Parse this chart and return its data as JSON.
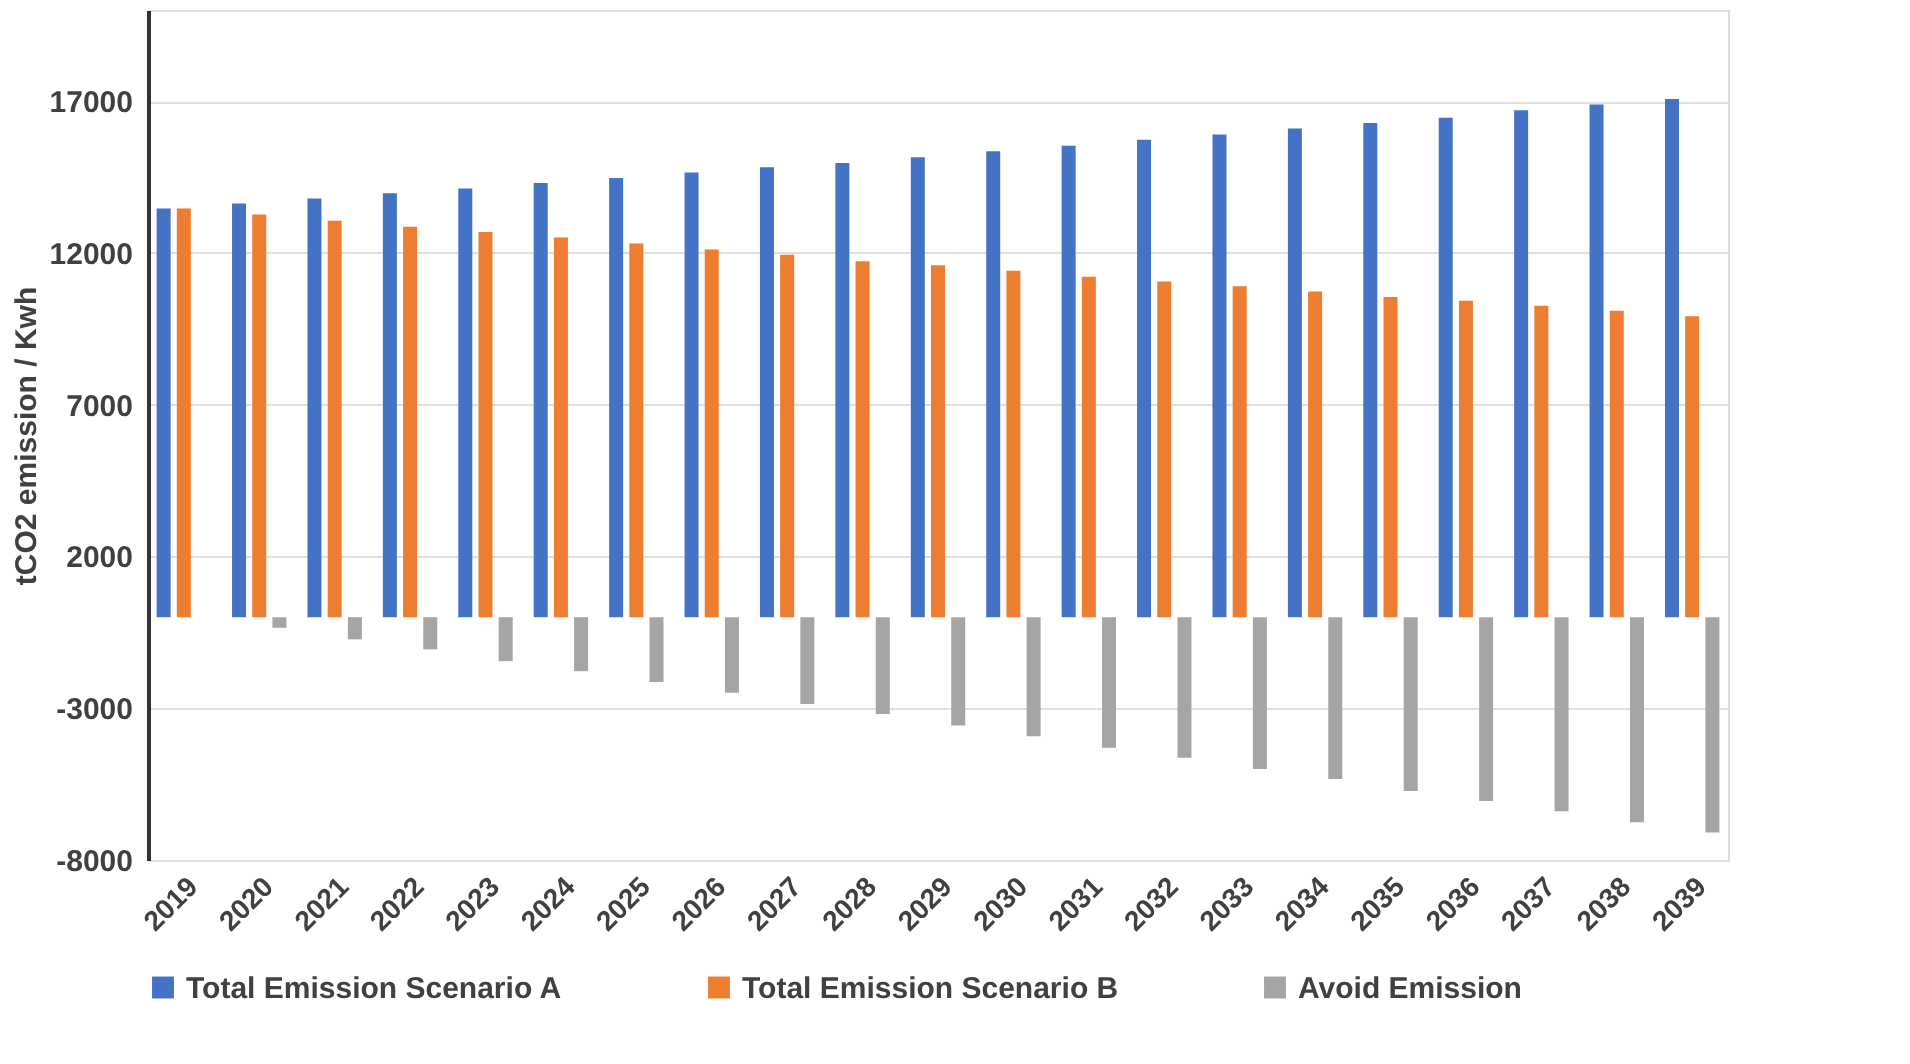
{
  "chart_data": {
    "type": "bar",
    "ylabel": "tCO2 emission / Kwh",
    "categories": [
      "2019",
      "2020",
      "2021",
      "2022",
      "2023",
      "2024",
      "2025",
      "2026",
      "2027",
      "2028",
      "2029",
      "2030",
      "2031",
      "2032",
      "2033",
      "2034",
      "2035",
      "2036",
      "2037",
      "2038",
      "2039"
    ],
    "series": [
      {
        "name": "Total Emission Scenario A",
        "color": "#4472c4",
        "values": [
          13460,
          13630,
          13790,
          13960,
          14120,
          14300,
          14470,
          14650,
          14820,
          14960,
          15150,
          15350,
          15530,
          15730,
          15900,
          16100,
          16280,
          16450,
          16700,
          16890,
          17070
        ]
      },
      {
        "name": "Total Emission Scenario B",
        "color": "#ed7d31",
        "values": [
          13460,
          13260,
          13060,
          12860,
          12690,
          12510,
          12310,
          12110,
          11940,
          11720,
          11590,
          11410,
          11210,
          11060,
          10900,
          10730,
          10550,
          10420,
          10260,
          10090,
          9910
        ]
      },
      {
        "name": "Avoid Emission",
        "color": "#a5a5a5",
        "values": [
          0,
          -350,
          -730,
          -1060,
          -1450,
          -1780,
          -2140,
          -2490,
          -2860,
          -3190,
          -3570,
          -3920,
          -4300,
          -4630,
          -5000,
          -5330,
          -5730,
          -6060,
          -6390,
          -6760,
          -7090
        ]
      }
    ],
    "ylim": [
      -8000,
      20000
    ],
    "yticks": [
      -8000,
      -3000,
      2000,
      7000,
      12000,
      17000
    ],
    "grid": "y",
    "legend": "bottom"
  }
}
